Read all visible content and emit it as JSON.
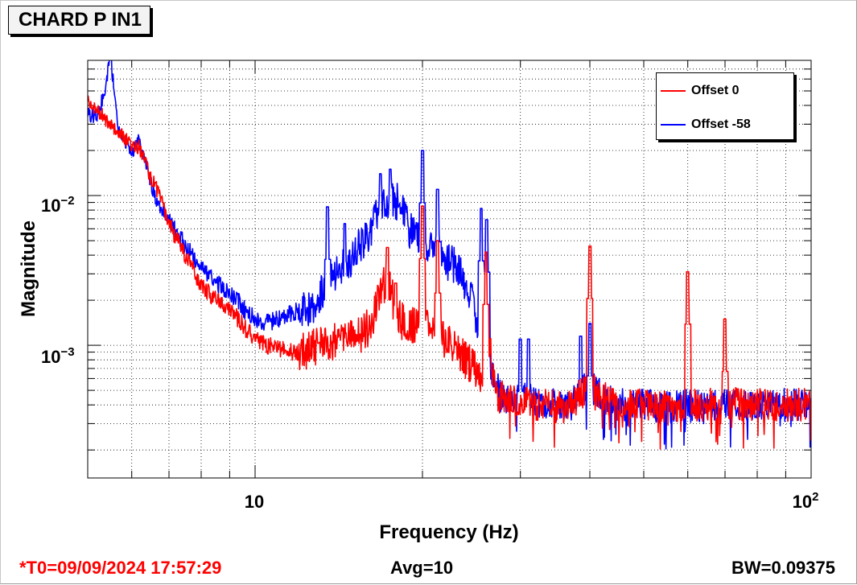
{
  "title": "CHARD P IN1",
  "colors": {
    "offset_0": "#ff0000",
    "offset_minus_58": "#0000ff",
    "t0_text": "#ff0000"
  },
  "footer": {
    "t0": "*T0=09/09/2024 17:57:29",
    "avg": "Avg=10",
    "bw": "BW=0.09375"
  },
  "legend": {
    "offset_0": "Offset 0",
    "offset_minus_58": "Offset -58"
  },
  "axes": {
    "xlabel": "Frequency (Hz)",
    "ylabel": "Magnitude",
    "x_tick_10": "10",
    "x_tick_100_base": "10",
    "x_tick_100_exp": "2",
    "y_tick_1e2_base": "10",
    "y_tick_1e2_exp": "−2",
    "y_tick_1e3_base": "10",
    "y_tick_1e3_exp": "−3"
  },
  "chart_data": {
    "type": "line",
    "title": "CHARD P IN1",
    "xlabel": "Frequency (Hz)",
    "ylabel": "Magnitude",
    "x_scale": "log",
    "y_scale": "log",
    "xlim": [
      5,
      100
    ],
    "ylim": [
      0.00013,
      0.08
    ],
    "grid": true,
    "legend_position": "top-right",
    "noise_floor": 0.0004,
    "series": [
      {
        "name": "Offset 0",
        "color": "#ff0000",
        "points": [
          [
            5.0,
            0.042
          ],
          [
            5.2,
            0.038
          ],
          [
            5.45,
            0.03
          ],
          [
            5.7,
            0.026
          ],
          [
            5.95,
            0.022
          ],
          [
            6.2,
            0.021
          ],
          [
            6.45,
            0.014
          ],
          [
            6.7,
            0.0105
          ],
          [
            7.0,
            0.0065
          ],
          [
            7.3,
            0.0047
          ],
          [
            7.6,
            0.0036
          ],
          [
            8.0,
            0.0025
          ],
          [
            8.4,
            0.0021
          ],
          [
            8.8,
            0.0018
          ],
          [
            9.2,
            0.0016
          ],
          [
            9.6,
            0.0013
          ],
          [
            10.0,
            0.0011
          ],
          [
            10.5,
            0.001
          ],
          [
            11.0,
            0.00095
          ],
          [
            11.5,
            0.0009
          ],
          [
            12.0,
            0.0009
          ],
          [
            12.5,
            0.00095
          ],
          [
            13.0,
            0.001
          ],
          [
            13.5,
            0.001
          ],
          [
            14.0,
            0.0011
          ],
          [
            14.5,
            0.0011
          ],
          [
            15.0,
            0.00115
          ],
          [
            15.5,
            0.0012
          ],
          [
            16.0,
            0.0013
          ],
          [
            16.5,
            0.0018
          ],
          [
            17.0,
            0.0026
          ],
          [
            17.5,
            0.0023
          ],
          [
            18.0,
            0.0016
          ],
          [
            18.5,
            0.0014
          ],
          [
            19.0,
            0.0013
          ],
          [
            19.5,
            0.0014
          ],
          [
            20.0,
            0.0016
          ],
          [
            20.5,
            0.0014
          ],
          [
            21.0,
            0.0013
          ],
          [
            22.0,
            0.0011
          ],
          [
            23.0,
            0.0009
          ],
          [
            24.0,
            0.0008
          ],
          [
            25.0,
            0.0007
          ],
          [
            26.0,
            0.0006
          ],
          [
            26.5,
            0.0009
          ],
          [
            27.0,
            0.0005
          ],
          [
            28.0,
            0.00045
          ],
          [
            30.0,
            0.00042
          ],
          [
            33.0,
            0.0004
          ],
          [
            36.0,
            0.00038
          ],
          [
            38.0,
            0.00045
          ],
          [
            40.0,
            0.00055
          ],
          [
            42.0,
            0.00045
          ],
          [
            45.0,
            0.0004
          ],
          [
            50.0,
            0.0004
          ],
          [
            55.0,
            0.00039
          ],
          [
            60.0,
            0.0004
          ],
          [
            65.0,
            0.0004
          ],
          [
            70.0,
            0.00042
          ],
          [
            75.0,
            0.0004
          ],
          [
            80.0,
            0.0004
          ],
          [
            90.0,
            0.0004
          ],
          [
            100.0,
            0.0004
          ]
        ],
        "peaks": [
          [
            17.3,
            0.0045
          ],
          [
            17.9,
            0.0026
          ],
          [
            20.0,
            0.0085
          ],
          [
            21.3,
            0.005
          ],
          [
            26.0,
            0.0042
          ],
          [
            40.0,
            0.0046
          ],
          [
            60.0,
            0.0031
          ],
          [
            70.0,
            0.0015
          ]
        ]
      },
      {
        "name": "Offset -58",
        "color": "#0000ff",
        "points": [
          [
            5.0,
            0.035
          ],
          [
            5.2,
            0.033
          ],
          [
            5.35,
            0.048
          ],
          [
            5.5,
            0.085
          ],
          [
            5.65,
            0.03
          ],
          [
            5.8,
            0.025
          ],
          [
            6.0,
            0.019
          ],
          [
            6.2,
            0.024
          ],
          [
            6.4,
            0.015
          ],
          [
            6.6,
            0.0098
          ],
          [
            6.9,
            0.0075
          ],
          [
            7.2,
            0.0058
          ],
          [
            7.5,
            0.0046
          ],
          [
            8.0,
            0.0033
          ],
          [
            8.4,
            0.0027
          ],
          [
            8.8,
            0.0024
          ],
          [
            9.2,
            0.0021
          ],
          [
            9.6,
            0.0017
          ],
          [
            10.0,
            0.0015
          ],
          [
            10.5,
            0.0014
          ],
          [
            11.0,
            0.0015
          ],
          [
            11.5,
            0.0016
          ],
          [
            12.0,
            0.0017
          ],
          [
            12.5,
            0.0018
          ],
          [
            13.0,
            0.002
          ],
          [
            13.5,
            0.0026
          ],
          [
            14.0,
            0.0031
          ],
          [
            14.5,
            0.0035
          ],
          [
            15.0,
            0.0038
          ],
          [
            15.5,
            0.0048
          ],
          [
            16.0,
            0.0056
          ],
          [
            16.5,
            0.0074
          ],
          [
            17.0,
            0.0089
          ],
          [
            17.5,
            0.0095
          ],
          [
            18.0,
            0.0091
          ],
          [
            18.5,
            0.0076
          ],
          [
            19.0,
            0.0058
          ],
          [
            19.5,
            0.0056
          ],
          [
            20.0,
            0.0052
          ],
          [
            20.5,
            0.0047
          ],
          [
            21.0,
            0.0044
          ],
          [
            22.0,
            0.0037
          ],
          [
            23.0,
            0.0033
          ],
          [
            24.0,
            0.0025
          ],
          [
            25.0,
            0.0016
          ],
          [
            26.0,
            0.0007
          ],
          [
            27.0,
            0.00055
          ],
          [
            28.0,
            0.00045
          ],
          [
            30.0,
            0.00045
          ],
          [
            33.0,
            0.0004
          ],
          [
            36.0,
            0.0004
          ],
          [
            38.0,
            0.00045
          ],
          [
            40.0,
            0.00055
          ],
          [
            42.0,
            0.00045
          ],
          [
            45.0,
            0.0004
          ],
          [
            50.0,
            0.0004
          ],
          [
            55.0,
            0.00038
          ],
          [
            60.0,
            0.0004
          ],
          [
            65.0,
            0.00038
          ],
          [
            70.0,
            0.0004
          ],
          [
            75.0,
            0.0004
          ],
          [
            80.0,
            0.0004
          ],
          [
            90.0,
            0.0004
          ],
          [
            100.0,
            0.0004
          ]
        ],
        "peaks": [
          [
            5.5,
            0.085
          ],
          [
            13.5,
            0.0084
          ],
          [
            14.5,
            0.0065
          ],
          [
            16.8,
            0.014
          ],
          [
            17.5,
            0.015
          ],
          [
            20.0,
            0.02
          ],
          [
            21.3,
            0.011
          ],
          [
            25.5,
            0.0082
          ],
          [
            26.1,
            0.0069
          ],
          [
            30.0,
            0.0011
          ],
          [
            31.0,
            0.0011
          ],
          [
            38.5,
            0.00115
          ],
          [
            40.0,
            0.0014
          ],
          [
            41.0,
            0.00022
          ]
        ]
      }
    ]
  }
}
